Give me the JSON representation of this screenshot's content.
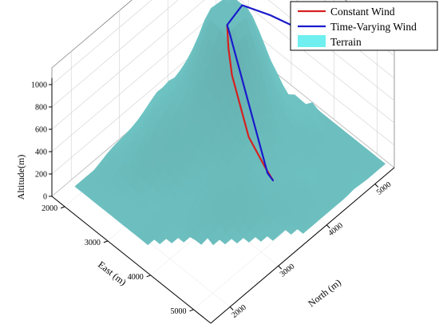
{
  "chart_data": {
    "type": "surface3d",
    "title": "",
    "axes": {
      "x": {
        "label": "East (m)",
        "ticks": [
          "2000",
          "3000",
          "4000",
          "5000"
        ],
        "range": [
          1700,
          5400
        ]
      },
      "y": {
        "label": "North (m)",
        "ticks": [
          "2000",
          "3000",
          "4000",
          "5000"
        ],
        "range": [
          1600,
          5400
        ]
      },
      "z": {
        "label": "Altitude(m)",
        "ticks": [
          "0",
          "200",
          "400",
          "600",
          "800",
          "1000"
        ],
        "range": [
          0,
          1000
        ]
      }
    },
    "grid": true,
    "legend": {
      "placement": "top-right",
      "entries": [
        {
          "label": "Constant Wind",
          "color": "#d62020",
          "kind": "line"
        },
        {
          "label": "Time-Varying Wind",
          "color": "#1a1acc",
          "kind": "line"
        },
        {
          "label": "Terrain",
          "color": "#6fefef",
          "kind": "patch"
        }
      ]
    },
    "series": [
      {
        "name": "Constant Wind",
        "color": "#d62020",
        "points": [
          {
            "east": 4600,
            "north": 3600,
            "alt": 300
          },
          {
            "east": 4350,
            "north": 3650,
            "alt": 330
          },
          {
            "east": 3900,
            "north": 3720,
            "alt": 430
          },
          {
            "east": 3250,
            "north": 3950,
            "alt": 700
          },
          {
            "east": 3000,
            "north": 4100,
            "alt": 810
          },
          {
            "east": 2800,
            "north": 4250,
            "alt": 900
          }
        ]
      },
      {
        "name": "Time-Varying Wind",
        "color": "#1a1acc",
        "points": [
          {
            "east": 4600,
            "north": 3600,
            "alt": 300
          },
          {
            "east": 4450,
            "north": 3620,
            "alt": 310
          },
          {
            "east": 2950,
            "north": 4180,
            "alt": 880
          },
          {
            "east": 2800,
            "north": 4250,
            "alt": 900
          },
          {
            "east": 2700,
            "north": 4650,
            "alt": 900
          },
          {
            "east": 2950,
            "north": 5000,
            "alt": 760
          },
          {
            "east": 3200,
            "north": 5250,
            "alt": 650
          }
        ]
      }
    ],
    "terrain": {
      "color": "#6fefef",
      "description_free": true,
      "peak_altitude": 1000
    }
  }
}
